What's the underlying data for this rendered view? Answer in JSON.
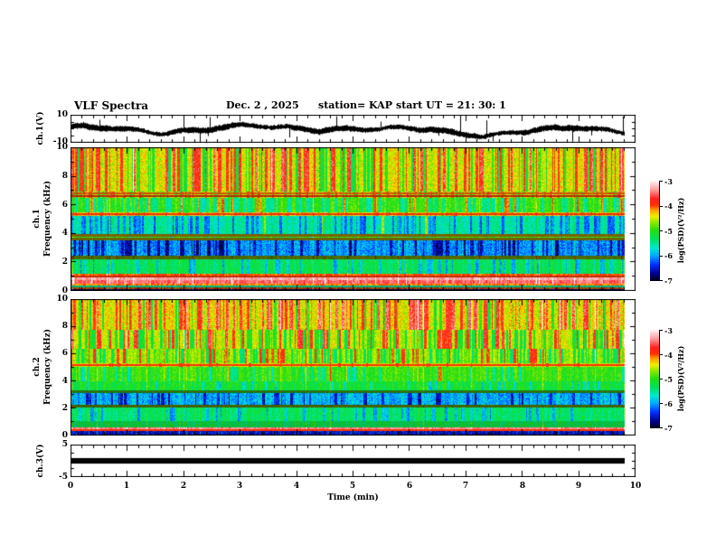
{
  "header": {
    "title": "VLF Spectra",
    "date": "Dec. 2  , 2025",
    "station": "station= KAP",
    "start_ut": "start UT  =   21: 30: 1"
  },
  "xaxis": {
    "label": "Time (min)",
    "ticks": [
      "0",
      "1",
      "2",
      "3",
      "4",
      "5",
      "6",
      "7",
      "8",
      "9",
      "10"
    ],
    "minor_step_min": 0.2
  },
  "panels": {
    "ch1_wave": {
      "ylabel": "ch.1(V)",
      "ytick_top": "10",
      "ytick_bottom": "-10"
    },
    "spec1": {
      "channel": "ch.1",
      "ylabel": "Frequency (kHz)",
      "yticks": [
        "10",
        "8",
        "6",
        "4",
        "2",
        "0"
      ]
    },
    "spec2": {
      "channel": "ch.2",
      "ylabel": "Frequency (kHz)",
      "yticks": [
        "10",
        "8",
        "6",
        "4",
        "2",
        "0"
      ]
    },
    "ch3": {
      "ylabel": "ch.3(V)",
      "ytick_top": "5",
      "ytick_bottom": "-5"
    }
  },
  "colorbars": [
    {
      "label": "log(PSD)(V²/Hz)",
      "ticks": [
        "-3",
        "-4",
        "-5",
        "-6",
        "-7"
      ]
    },
    {
      "label": "log(PSD)(V²/Hz)",
      "ticks": [
        "-3",
        "-4",
        "-5",
        "-6",
        "-7"
      ]
    }
  ],
  "colormap_stops": [
    [
      -7.0,
      "#000014"
    ],
    [
      -6.7,
      "#000090"
    ],
    [
      -6.35,
      "#0030ff"
    ],
    [
      -6.0,
      "#00a8ff"
    ],
    [
      -5.7,
      "#00e8d0"
    ],
    [
      -5.35,
      "#00e060"
    ],
    [
      -5.0,
      "#22df10"
    ],
    [
      -4.7,
      "#8ae800"
    ],
    [
      -4.45,
      "#eef000"
    ],
    [
      -4.2,
      "#ffa000"
    ],
    [
      -4.0,
      "#ff3000"
    ],
    [
      -3.75,
      "#ff2020"
    ],
    [
      -3.4,
      "#ff9a9a"
    ],
    [
      -3.15,
      "#ffd8dc"
    ],
    [
      -3.0,
      "#ffffff"
    ]
  ],
  "chart_data": [
    {
      "type": "line",
      "panel": "ch1_waveform",
      "ylabel": "ch.1(V)",
      "ylim": [
        -10,
        10
      ],
      "x_range_min": [
        0,
        9.8
      ],
      "baseline": -0.5,
      "wander_amp": 2.0,
      "noise_amp": 1.5,
      "spike_prob": 0.03,
      "description": "Broadband noisy voltage trace around -0.5 V, envelope fluctuating about ±3 V, frequent impulsive spikes reaching the ±10 V limits; data ends at 9.8 min."
    },
    {
      "type": "heatmap",
      "panel": "ch1_spectrogram",
      "ylabel": "Frequency (kHz)",
      "ylim_khz": [
        0,
        10
      ],
      "zlim": [
        -7,
        -3
      ],
      "z_label": "log(PSD)(V²/Hz)",
      "x_range_min": [
        0,
        9.8
      ],
      "bands": [
        {
          "f": [
            6.9,
            10.01
          ],
          "psd": -4.5,
          "noise": 0.55,
          "red": 0.25,
          "green": 0.18
        },
        {
          "f": [
            6.5,
            6.9
          ],
          "psd": -4.55,
          "noise": 0.5,
          "red": 0.15,
          "green": 0.15
        },
        {
          "f": [
            5.45,
            6.5
          ],
          "psd": -4.95,
          "noise": 0.45,
          "red": 0.07,
          "green": 0.3
        },
        {
          "f": [
            5.2,
            5.45
          ],
          "psd": -4.3,
          "noise": 0.3,
          "red": 0.1,
          "green": 0.05
        },
        {
          "f": [
            3.95,
            5.2
          ],
          "psd": -5.55,
          "noise": 0.5,
          "red": 0.02,
          "green": 0.25
        },
        {
          "f": [
            3.5,
            3.95
          ],
          "psd": -5.0,
          "noise": 0.5,
          "green": 0.1
        },
        {
          "f": [
            2.45,
            3.5
          ],
          "psd": -6.05,
          "noise": 0.6,
          "green": 0.2
        },
        {
          "f": [
            2.2,
            2.45
          ],
          "psd": -4.6,
          "noise": 0.4,
          "dim": 0.45
        },
        {
          "f": [
            1.15,
            2.2
          ],
          "psd": -5.3,
          "noise": 0.45,
          "green": 0.15
        },
        {
          "f": [
            0.95,
            1.15
          ],
          "psd": -4.05,
          "noise": 0.25
        },
        {
          "f": [
            0.7,
            0.95
          ],
          "psd": -3.35,
          "noise": 0.2
        },
        {
          "f": [
            0.5,
            0.7
          ],
          "psd": -3.55,
          "noise": 0.3
        },
        {
          "f": [
            0.35,
            0.5
          ],
          "psd": -4.15,
          "noise": 0.3
        },
        {
          "f": [
            0.2,
            0.35
          ],
          "psd": -5.6,
          "noise": 0.3,
          "dim": 0.8
        },
        {
          "f": [
            0.08,
            0.2
          ],
          "psd": -4.1,
          "noise": 0.3,
          "dim": 0.6
        },
        {
          "f": [
            0.0,
            0.08
          ],
          "psd": -6.9,
          "noise": 0.2
        }
      ],
      "h_lines": [
        {
          "f": 6.8,
          "w": 0.05,
          "psd": -4.1,
          "dim": 0.8
        },
        {
          "f": 6.62,
          "w": 0.08,
          "psd": -4.0,
          "dim": 0.7
        },
        {
          "f": 5.35,
          "w": 0.06,
          "psd": -4.0,
          "dim": 0.9
        },
        {
          "f": 3.86,
          "w": 0.07,
          "psd": -4.3,
          "dim": 0.5
        },
        {
          "f": 3.62,
          "w": 0.09,
          "psd": -4.4,
          "dim": 0.45
        },
        {
          "f": 1.0,
          "w": 0.05,
          "psd": -4.0,
          "dim": 0.75
        }
      ]
    },
    {
      "type": "heatmap",
      "panel": "ch2_spectrogram",
      "ylabel": "Frequency (kHz)",
      "ylim_khz": [
        0,
        10
      ],
      "zlim": [
        -7,
        -3
      ],
      "z_label": "log(PSD)(V²/Hz)",
      "x_range_min": [
        0,
        9.8
      ],
      "bands": [
        {
          "f": [
            7.8,
            10.01
          ],
          "psd": -4.45,
          "noise": 0.55,
          "red": 0.3,
          "green": 0.12
        },
        {
          "f": [
            6.35,
            7.8
          ],
          "psd": -4.55,
          "noise": 0.5,
          "red": 0.18,
          "green": 0.22
        },
        {
          "f": [
            5.3,
            6.35
          ],
          "psd": -4.7,
          "noise": 0.45,
          "red": 0.08,
          "green": 0.25
        },
        {
          "f": [
            5.05,
            5.3
          ],
          "psd": -4.55,
          "noise": 0.3,
          "red": 0.08
        },
        {
          "f": [
            4.0,
            5.05
          ],
          "psd": -4.95,
          "noise": 0.4,
          "red": 0.02,
          "green": 0.15
        },
        {
          "f": [
            3.3,
            4.0
          ],
          "psd": -5.15,
          "noise": 0.5,
          "green": 0.08
        },
        {
          "f": [
            3.1,
            3.3
          ],
          "psd": -5.2,
          "noise": 0.4,
          "dim": 0.55
        },
        {
          "f": [
            2.25,
            3.1
          ],
          "psd": -5.95,
          "noise": 0.6,
          "green": 0.15
        },
        {
          "f": [
            2.05,
            2.25
          ],
          "psd": -4.7,
          "noise": 0.4,
          "dim": 0.45
        },
        {
          "f": [
            1.05,
            2.05
          ],
          "psd": -5.35,
          "noise": 0.45,
          "green": 0.15
        },
        {
          "f": [
            0.6,
            1.05
          ],
          "psd": -5.25,
          "noise": 0.5,
          "dim": 0.85
        },
        {
          "f": [
            0.45,
            0.6
          ],
          "psd": -3.45,
          "noise": 0.25
        },
        {
          "f": [
            0.28,
            0.45
          ],
          "psd": -4.05,
          "noise": 0.3
        },
        {
          "f": [
            0.0,
            0.28
          ],
          "psd": -6.5,
          "noise": 0.5,
          "dim": 0.9
        }
      ],
      "h_lines": [
        {
          "f": 5.15,
          "w": 0.08,
          "psd": -3.95
        },
        {
          "f": 3.2,
          "w": 0.06,
          "psd": -4.6,
          "dim": 0.45
        },
        {
          "f": 2.15,
          "w": 0.06,
          "psd": -4.6,
          "dim": 0.4
        },
        {
          "f": 0.35,
          "w": 0.06,
          "psd": -3.95
        }
      ]
    },
    {
      "type": "line",
      "panel": "ch3_voltage",
      "ylabel": "ch.3(V)",
      "ylim": [
        -5,
        5
      ],
      "x_range_min": [
        0,
        9.8
      ],
      "constant_band": [
        -0.9,
        0.9
      ],
      "description": "Flat saturated signal rendered as a solid black bar of about ±0.9 V around 0 V, spanning 0 to 9.8 min."
    }
  ]
}
